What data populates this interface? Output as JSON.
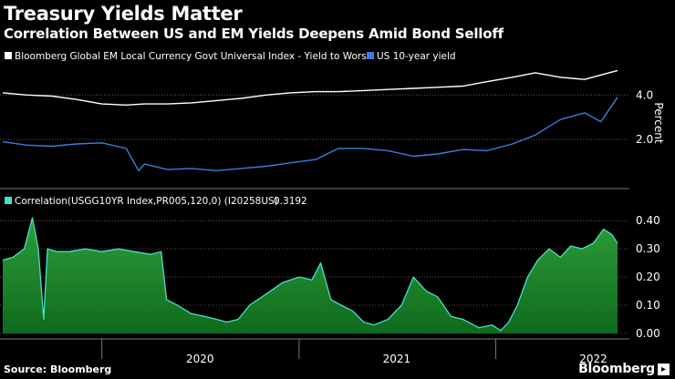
{
  "title": "Treasury Yields Matter",
  "subtitle": "Correlation Between US and EM Yields Deepens Amid Bond Selloff",
  "source": "Source: Bloomberg",
  "brand": "Bloomberg",
  "colors": {
    "em": "#ffffff",
    "us": "#3b7ddd",
    "corr_line": "#46e0c8",
    "corr_fill_top": "#2f9e3a",
    "corr_fill_bottom": "#0f6a1d",
    "grid": "#555555"
  },
  "chart_data": [
    {
      "type": "line",
      "title": "",
      "ylabel": "Percent",
      "ylim": [
        0,
        5.2
      ],
      "yticks": [
        2.0,
        4.0
      ],
      "ytick_labels": [
        "2.0",
        "4.0"
      ],
      "xlim": [
        "2019-07-01",
        "2022-08-20"
      ],
      "series": [
        {
          "name": "Bloomberg Global EM Local Currency Govt Universal Index - Yield to Worst",
          "color": "#ffffff",
          "x": [
            "2019-07-01",
            "2019-08-15",
            "2019-10-01",
            "2019-11-15",
            "2020-01-01",
            "2020-02-15",
            "2020-03-20",
            "2020-05-01",
            "2020-06-15",
            "2020-08-01",
            "2020-09-15",
            "2020-11-01",
            "2020-12-15",
            "2021-02-01",
            "2021-03-15",
            "2021-05-01",
            "2021-06-15",
            "2021-08-01",
            "2021-09-15",
            "2021-11-01",
            "2021-12-15",
            "2022-02-01",
            "2022-03-15",
            "2022-05-01",
            "2022-06-15",
            "2022-07-15",
            "2022-08-15"
          ],
          "values": [
            4.1,
            4.0,
            3.95,
            3.8,
            3.6,
            3.55,
            3.6,
            3.6,
            3.65,
            3.75,
            3.85,
            4.0,
            4.1,
            4.15,
            4.15,
            4.2,
            4.25,
            4.3,
            4.35,
            4.4,
            4.6,
            4.8,
            5.0,
            4.8,
            4.7,
            4.9,
            5.1
          ]
        },
        {
          "name": "US 10-year yield",
          "color": "#3b7ddd",
          "x": [
            "2019-07-01",
            "2019-08-15",
            "2019-10-01",
            "2019-11-15",
            "2020-01-01",
            "2020-02-15",
            "2020-03-09",
            "2020-03-20",
            "2020-05-01",
            "2020-06-15",
            "2020-08-01",
            "2020-09-15",
            "2020-11-01",
            "2020-12-15",
            "2021-02-01",
            "2021-03-15",
            "2021-05-01",
            "2021-06-15",
            "2021-08-01",
            "2021-09-15",
            "2021-11-01",
            "2021-12-15",
            "2022-02-01",
            "2022-03-15",
            "2022-05-01",
            "2022-06-15",
            "2022-07-15",
            "2022-08-15"
          ],
          "values": [
            1.9,
            1.75,
            1.7,
            1.8,
            1.85,
            1.6,
            0.6,
            0.9,
            0.65,
            0.7,
            0.6,
            0.7,
            0.8,
            0.95,
            1.1,
            1.6,
            1.6,
            1.5,
            1.25,
            1.35,
            1.55,
            1.5,
            1.8,
            2.2,
            2.9,
            3.2,
            2.8,
            3.9
          ]
        }
      ]
    },
    {
      "type": "area",
      "title": "",
      "ylim": [
        0,
        0.42
      ],
      "yticks": [
        0,
        0.1,
        0.2,
        0.3,
        0.4
      ],
      "ytick_labels": [
        "0.00",
        "0.10",
        "0.20",
        "0.30",
        "0.40"
      ],
      "xlim": [
        "2019-07-01",
        "2022-08-20"
      ],
      "xtick_labels": [
        "2020",
        "2021",
        "2022"
      ],
      "xtick_dates": [
        "2020-01-01",
        "2021-01-01",
        "2022-01-01"
      ],
      "xtick_label_dates": [
        "2020-07-01",
        "2021-07-01",
        "2022-07-01"
      ],
      "legend_label": "Correlation(USGG10YR Index,PR005,120,0) (I20258US)",
      "last_value": "0.3192",
      "series": [
        {
          "name": "Correlation(USGG10YR Index,PR005,120,0) (I20258US)",
          "color": "#46e0c8",
          "x": [
            "2019-07-01",
            "2019-07-20",
            "2019-08-10",
            "2019-08-25",
            "2019-09-05",
            "2019-09-15",
            "2019-09-22",
            "2019-10-10",
            "2019-11-01",
            "2019-12-01",
            "2020-01-01",
            "2020-02-01",
            "2020-03-01",
            "2020-04-01",
            "2020-04-20",
            "2020-04-30",
            "2020-05-20",
            "2020-06-15",
            "2020-07-10",
            "2020-08-01",
            "2020-08-20",
            "2020-09-10",
            "2020-10-01",
            "2020-11-01",
            "2020-12-01",
            "2021-01-01",
            "2021-01-25",
            "2021-02-10",
            "2021-03-01",
            "2021-03-20",
            "2021-04-10",
            "2021-05-01",
            "2021-05-20",
            "2021-06-15",
            "2021-07-10",
            "2021-08-01",
            "2021-08-25",
            "2021-09-15",
            "2021-10-10",
            "2021-11-01",
            "2021-12-01",
            "2021-12-25",
            "2022-01-10",
            "2022-01-25",
            "2022-02-10",
            "2022-03-01",
            "2022-03-20",
            "2022-04-10",
            "2022-05-01",
            "2022-05-20",
            "2022-06-10",
            "2022-07-01",
            "2022-07-20",
            "2022-08-05",
            "2022-08-15"
          ],
          "values": [
            0.26,
            0.27,
            0.3,
            0.41,
            0.3,
            0.05,
            0.3,
            0.29,
            0.29,
            0.3,
            0.29,
            0.3,
            0.29,
            0.28,
            0.29,
            0.12,
            0.1,
            0.07,
            0.06,
            0.05,
            0.04,
            0.05,
            0.1,
            0.14,
            0.18,
            0.2,
            0.19,
            0.25,
            0.12,
            0.1,
            0.08,
            0.04,
            0.03,
            0.05,
            0.1,
            0.2,
            0.15,
            0.13,
            0.06,
            0.05,
            0.02,
            0.03,
            0.01,
            0.04,
            0.1,
            0.2,
            0.26,
            0.3,
            0.27,
            0.31,
            0.3,
            0.32,
            0.37,
            0.35,
            0.3192
          ]
        }
      ]
    }
  ]
}
